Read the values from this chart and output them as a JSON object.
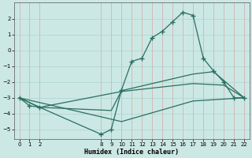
{
  "line1_x": [
    0,
    1,
    2,
    8,
    9,
    10,
    11,
    12,
    13,
    14,
    15,
    16,
    17,
    18,
    19,
    20,
    21,
    22
  ],
  "line1_y": [
    -3.0,
    -3.5,
    -3.6,
    -5.3,
    -5.0,
    -2.5,
    -0.7,
    -0.5,
    0.8,
    1.2,
    1.8,
    2.4,
    2.2,
    -0.5,
    -1.3,
    -2.0,
    -3.0,
    -3.0
  ],
  "line2_x": [
    0,
    2,
    9,
    10,
    17,
    19,
    22
  ],
  "line2_y": [
    -3.0,
    -3.6,
    -3.8,
    -2.55,
    -1.5,
    -1.35,
    -3.0
  ],
  "line3_x": [
    0,
    2,
    10,
    17,
    20,
    22
  ],
  "line3_y": [
    -3.0,
    -3.6,
    -2.6,
    -2.1,
    -2.2,
    -3.0
  ],
  "line4_x": [
    0,
    10,
    17,
    22
  ],
  "line4_y": [
    -3.0,
    -4.5,
    -3.2,
    -3.0
  ],
  "bg_color": "#cce8e4",
  "line_color": "#2a6e62",
  "xlabel": "Humidex (Indice chaleur)",
  "xlim": [
    -0.5,
    22.5
  ],
  "ylim": [
    -5.6,
    3.0
  ],
  "xticks": [
    0,
    1,
    2,
    8,
    9,
    10,
    11,
    12,
    13,
    14,
    15,
    16,
    17,
    18,
    19,
    20,
    21,
    22
  ],
  "yticks": [
    -5,
    -4,
    -3,
    -2,
    -1,
    0,
    1,
    2
  ],
  "vgrid_color": "#d4a8a8",
  "hgrid_color": "#aed4cc"
}
